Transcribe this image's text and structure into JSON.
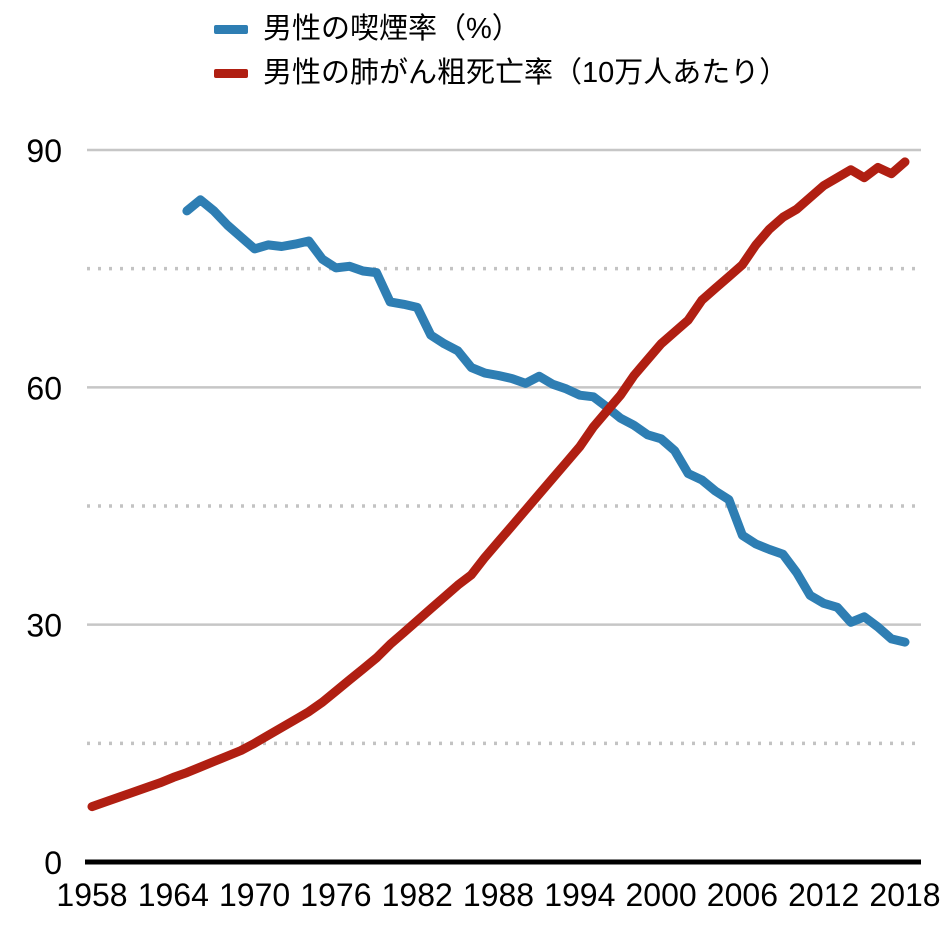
{
  "chart_data": {
    "type": "line",
    "title": "",
    "xlabel": "",
    "ylabel": "",
    "xlim": [
      1958,
      2018
    ],
    "ylim": [
      0,
      90
    ],
    "x_ticks": [
      1958,
      1964,
      1970,
      1976,
      1982,
      1988,
      1994,
      2000,
      2006,
      2012,
      2018
    ],
    "y_ticks": [
      0,
      30,
      60,
      90
    ],
    "y_gridlines_dotted": [
      15,
      45,
      75
    ],
    "grid": "horizontal",
    "legend_position": "top-left",
    "series": [
      {
        "name": "男性の喫煙率（%）",
        "color": "#2e7eb3",
        "x": [
          1965,
          1966,
          1967,
          1968,
          1969,
          1970,
          1971,
          1972,
          1973,
          1974,
          1975,
          1976,
          1977,
          1978,
          1979,
          1980,
          1981,
          1982,
          1983,
          1984,
          1985,
          1986,
          1987,
          1988,
          1989,
          1990,
          1991,
          1992,
          1993,
          1994,
          1995,
          1996,
          1997,
          1998,
          1999,
          2000,
          2001,
          2002,
          2003,
          2004,
          2005,
          2006,
          2007,
          2008,
          2009,
          2010,
          2011,
          2012,
          2013,
          2014,
          2015,
          2016,
          2017,
          2018
        ],
        "values": [
          82.3,
          83.7,
          82.3,
          80.5,
          79.0,
          77.5,
          78.0,
          77.8,
          78.1,
          78.5,
          76.2,
          75.1,
          75.3,
          74.7,
          74.5,
          70.8,
          70.5,
          70.1,
          66.6,
          65.5,
          64.6,
          62.5,
          61.8,
          61.5,
          61.1,
          60.5,
          61.4,
          60.4,
          59.8,
          59.0,
          58.8,
          57.5,
          56.1,
          55.2,
          54.0,
          53.5,
          52.0,
          49.1,
          48.3,
          46.9,
          45.8,
          41.3,
          40.2,
          39.5,
          38.9,
          36.6,
          33.7,
          32.7,
          32.2,
          30.3,
          31.0,
          29.7,
          28.2,
          27.8
        ]
      },
      {
        "name": "男性の肺がん粗死亡率（10万人あたり）",
        "color": "#b01f12",
        "x": [
          1958,
          1959,
          1960,
          1961,
          1962,
          1963,
          1964,
          1965,
          1966,
          1967,
          1968,
          1969,
          1970,
          1971,
          1972,
          1973,
          1974,
          1975,
          1976,
          1977,
          1978,
          1979,
          1980,
          1981,
          1982,
          1983,
          1984,
          1985,
          1986,
          1987,
          1988,
          1989,
          1990,
          1991,
          1992,
          1993,
          1994,
          1995,
          1996,
          1997,
          1998,
          1999,
          2000,
          2001,
          2002,
          2003,
          2004,
          2005,
          2006,
          2007,
          2008,
          2009,
          2010,
          2011,
          2012,
          2013,
          2014,
          2015,
          2016,
          2017,
          2018
        ],
        "values": [
          7.0,
          7.6,
          8.2,
          8.8,
          9.4,
          10.0,
          10.7,
          11.3,
          12.0,
          12.7,
          13.4,
          14.1,
          15.0,
          16.0,
          17.0,
          18.0,
          19.0,
          20.2,
          21.6,
          23.0,
          24.4,
          25.8,
          27.5,
          29.0,
          30.5,
          32.0,
          33.5,
          35.0,
          36.3,
          38.5,
          40.5,
          42.5,
          44.5,
          46.5,
          48.5,
          50.5,
          52.5,
          55.0,
          57.0,
          59.0,
          61.5,
          63.5,
          65.5,
          67.0,
          68.5,
          71.0,
          72.5,
          74.0,
          75.5,
          78.0,
          80.0,
          81.5,
          82.5,
          84.0,
          85.5,
          86.5,
          87.5,
          86.5,
          87.8,
          87.0,
          88.5
        ]
      }
    ]
  }
}
